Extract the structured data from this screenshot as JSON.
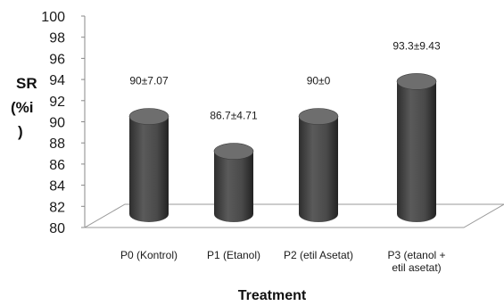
{
  "chart_data": {
    "type": "bar",
    "style": "3d-cylinder",
    "categories": [
      [
        "P0 (Kontrol)"
      ],
      [
        "P1 (Etanol)"
      ],
      [
        "P2 (etil Asetat)"
      ],
      [
        "P3 (etanol +",
        "etil asetat)"
      ]
    ],
    "values": [
      90,
      86.7,
      90,
      93.3
    ],
    "data_labels": [
      "90±7.07",
      "86.7±4.71",
      "90±0",
      "93.3±9.43"
    ],
    "ylabel_lines": [
      "SR",
      "(%i",
      ")"
    ],
    "xlabel": "Treatment",
    "ylim": [
      80,
      100
    ],
    "yticks": [
      80,
      82,
      84,
      86,
      88,
      90,
      92,
      94,
      96,
      98,
      100
    ],
    "grid": false,
    "legend": "none",
    "colors": {
      "bar_body": "#4a4a4a",
      "bar_top": "#6e6e6e",
      "floor_line": "#9a9a9a",
      "axis": "#888888"
    }
  }
}
